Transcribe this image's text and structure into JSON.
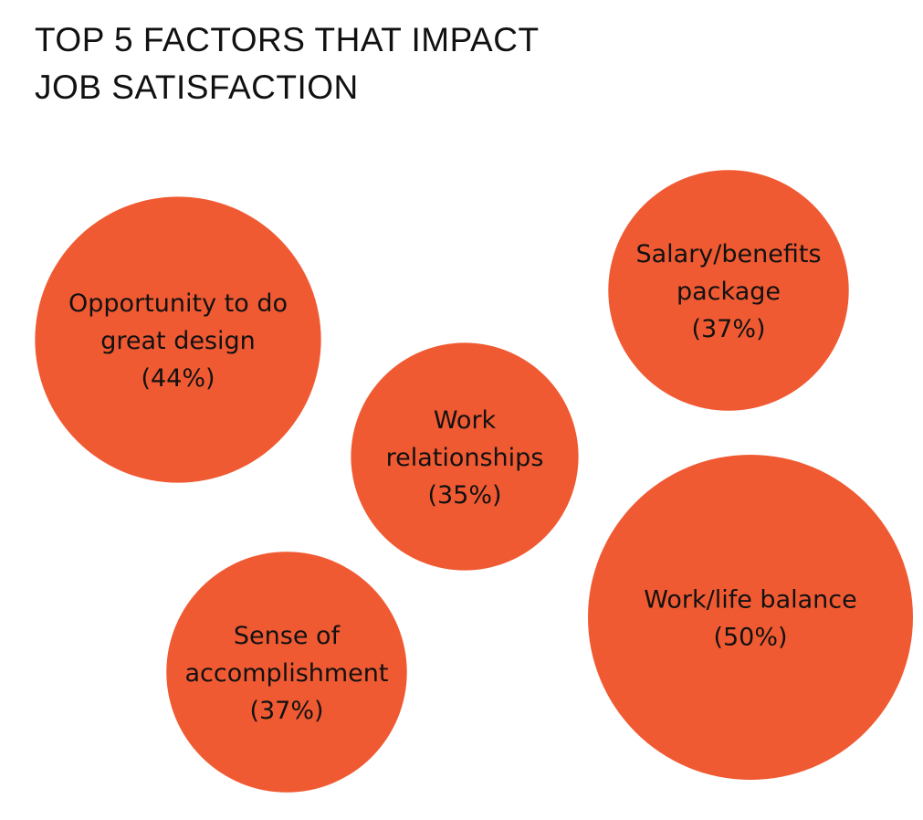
{
  "title_lines": [
    "TOP 5 FACTORS THAT IMPACT",
    "JOB SATISFACTION"
  ],
  "bubble_color": "#f05a32",
  "chart_data": {
    "type": "bubble",
    "title": "TOP 5 FACTORS THAT IMPACT JOB SATISFACTION",
    "unit": "%",
    "items": [
      {
        "id": "opportunity",
        "label_lines": [
          "Opportunity to do",
          "great design"
        ],
        "value": 44,
        "value_label": "(44%)"
      },
      {
        "id": "salary",
        "label_lines": [
          "Salary/benefits",
          "package"
        ],
        "value": 37,
        "value_label": "(37%)"
      },
      {
        "id": "relationships",
        "label_lines": [
          "Work",
          "relationships"
        ],
        "value": 35,
        "value_label": "(35%)"
      },
      {
        "id": "accomplishment",
        "label_lines": [
          "Sense of",
          "accomplishment"
        ],
        "value": 37,
        "value_label": "(37%)"
      },
      {
        "id": "balance",
        "label_lines": [
          "Work/life balance"
        ],
        "value": 50,
        "value_label": "(50%)"
      }
    ]
  }
}
